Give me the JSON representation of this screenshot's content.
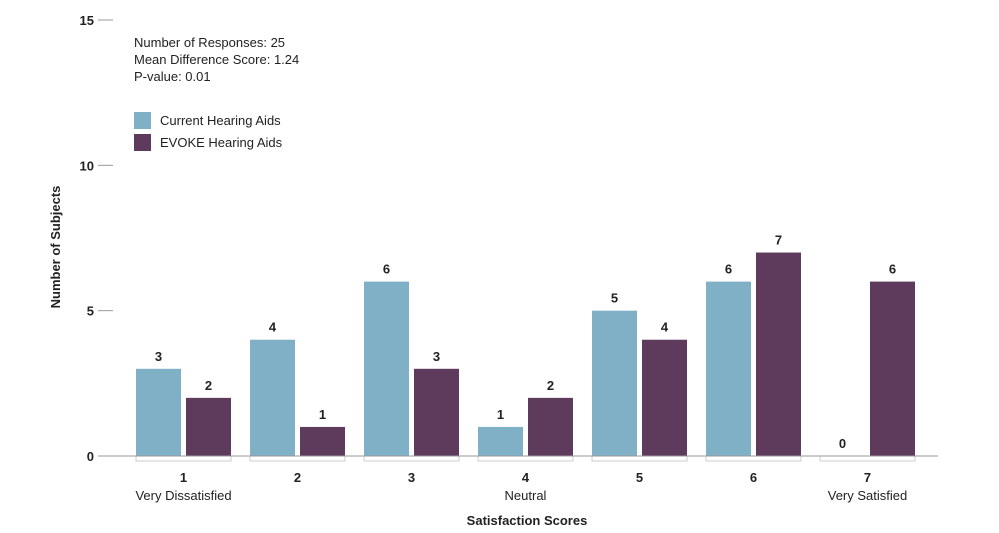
{
  "chart_data": {
    "type": "bar",
    "xlabel": "Satisfaction Scores",
    "ylabel": "Number of Subjects",
    "ylim": [
      0,
      15
    ],
    "yticks": [
      0,
      5,
      10,
      15
    ],
    "grid": false,
    "legend_position": "top-left",
    "categories": [
      "1",
      "2",
      "3",
      "4",
      "5",
      "6",
      "7"
    ],
    "category_sublabels": [
      "Very Dissatisfied",
      "",
      "",
      "Neutral",
      "",
      "",
      "Very Satisfied"
    ],
    "series": [
      {
        "name": "Current Hearing Aids",
        "color": "#7fb0c6",
        "values": [
          3,
          4,
          6,
          1,
          5,
          6,
          0
        ]
      },
      {
        "name": "EVOKE Hearing Aids",
        "color": "#5e3a5c",
        "values": [
          2,
          1,
          3,
          2,
          4,
          7,
          6
        ]
      }
    ],
    "annotations": [
      "Number of Responses: 25",
      "Mean Difference Score: 1.24",
      "P-value: 0.01"
    ]
  }
}
